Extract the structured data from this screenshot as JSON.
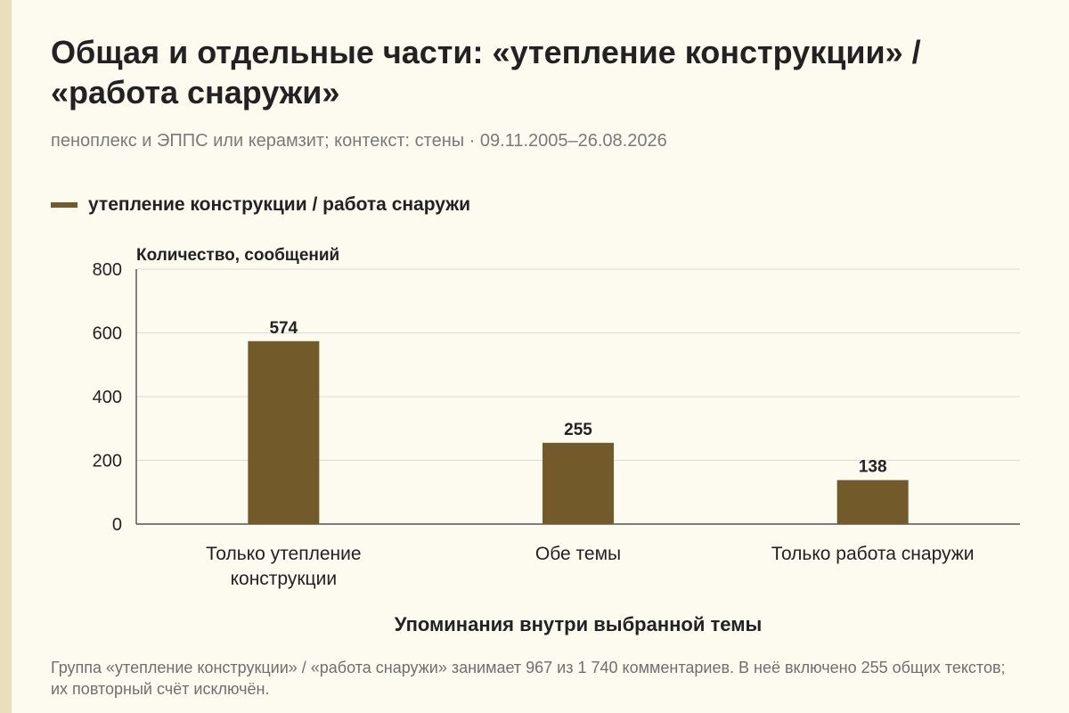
{
  "title": "Общая и отдельные части: «утепление конструкции» / «работа снаружи»",
  "subtitle": "пеноплекс и ЭППС или керамзит; контекст: стены · 09.11.2005–26.08.2026",
  "footnote": "Группа «утепление конструкции» / «работа снаружи» занимает 967 из 1 740 комментариев. В неё включено 255 общих текстов; их повторный счёт исключён.",
  "colors": {
    "bar": "#725a2a",
    "grid": "#d9d9d9",
    "background": "#fdfaf0",
    "stripe": "#e9dfbd"
  },
  "chart_data": {
    "type": "bar",
    "categories": [
      [
        "Только утепление",
        "конструкции"
      ],
      [
        "Обе темы"
      ],
      [
        "Только работа снаружи"
      ]
    ],
    "series": [
      {
        "name": "утепление конструкции / работа снаружи",
        "values": [
          574,
          255,
          138
        ]
      }
    ],
    "ylabel": "Количество, сообщений",
    "xlabel": "Упоминания внутри выбранной темы",
    "ylim": [
      0,
      800
    ],
    "yticks": [
      0,
      200,
      400,
      600,
      800
    ],
    "grid": true,
    "legend": "top-left",
    "data_labels": true
  }
}
